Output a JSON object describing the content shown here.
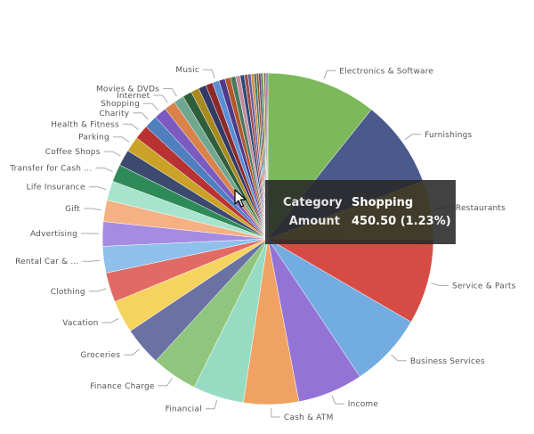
{
  "chart_data": {
    "type": "pie",
    "title": "",
    "start_angle_deg": 0,
    "slices": [
      {
        "name": "Electronics & Software",
        "value": 10.8,
        "color": "#7cb95a",
        "label": "Electronics & Software"
      },
      {
        "name": "Furnishings",
        "value": 8.6,
        "color": "#4a5a8c",
        "label": "Furnishings"
      },
      {
        "name": "Restaurants",
        "value": 5.8,
        "color": "#f2c53d",
        "label": "Restaurants"
      },
      {
        "name": "Service & Parts",
        "value": 8.3,
        "color": "#d64b43",
        "label": "Service & Parts"
      },
      {
        "name": "Business Services",
        "value": 7.3,
        "color": "#73ace0",
        "label": "Business Services"
      },
      {
        "name": "Income",
        "value": 6.4,
        "color": "#9473d6",
        "label": "Income"
      },
      {
        "name": "Cash & ATM",
        "value": 5.4,
        "color": "#f0a263",
        "label": "Cash & ATM"
      },
      {
        "name": "Financial",
        "value": 5.0,
        "color": "#97dbc3",
        "label": "Financial"
      },
      {
        "name": "Finance Charge",
        "value": 4.5,
        "color": "#8fc57c",
        "label": "Finance Charge"
      },
      {
        "name": "Groceries",
        "value": 3.8,
        "color": "#6a72a4",
        "label": "Groceries"
      },
      {
        "name": "Vacation",
        "value": 3.2,
        "color": "#f5d35e",
        "label": "Vacation"
      },
      {
        "name": "Clothing",
        "value": 2.9,
        "color": "#e26a64",
        "label": "Clothing"
      },
      {
        "name": "Rental Car & ...",
        "value": 2.6,
        "color": "#8fc0ec",
        "label": "Rental Car & ..."
      },
      {
        "name": "Advertising",
        "value": 2.4,
        "color": "#a58ce2",
        "label": "Advertising"
      },
      {
        "name": "Gift",
        "value": 2.1,
        "color": "#f5b083",
        "label": "Gift"
      },
      {
        "name": "Life Insurance",
        "value": 1.9,
        "color": "#a8e3cd",
        "label": "Life Insurance"
      },
      {
        "name": "Transfer for Cash ...",
        "value": 1.7,
        "color": "#2e8b57",
        "label": "Transfer for Cash ..."
      },
      {
        "name": "Coffee Shops",
        "value": 1.6,
        "color": "#3b4a6e",
        "label": "Coffee Shops"
      },
      {
        "name": "Parking",
        "value": 1.5,
        "color": "#c9a227",
        "label": "Parking"
      },
      {
        "name": "Health & Fitness",
        "value": 1.4,
        "color": "#b83232",
        "label": "Health & Fitness"
      },
      {
        "name": "Charity",
        "value": 1.3,
        "color": "#4f7fbf",
        "label": "Charity"
      },
      {
        "name": "Shopping",
        "value": 1.23,
        "color": "#7b5bbf",
        "label": "Shopping"
      },
      {
        "name": "Internet",
        "value": 1.1,
        "color": "#d9824a",
        "label": "Internet"
      },
      {
        "name": "Movies & DVDs",
        "value": 1.0,
        "color": "#6fa88f",
        "label": "Movies & DVDs"
      },
      {
        "name": "",
        "value": 0.9,
        "color": "#2f5e3a",
        "label": ""
      },
      {
        "name": "",
        "value": 0.8,
        "color": "#a88a1e",
        "label": ""
      },
      {
        "name": "",
        "value": 0.75,
        "color": "#333a66",
        "label": ""
      },
      {
        "name": "",
        "value": 0.7,
        "color": "#8c2a2a",
        "label": ""
      },
      {
        "name": "Music",
        "value": 0.65,
        "color": "#5a8fd6",
        "label": "Music"
      },
      {
        "name": "",
        "value": 0.6,
        "color": "#4d3a8c",
        "label": ""
      },
      {
        "name": "",
        "value": 0.55,
        "color": "#b3562a",
        "label": ""
      },
      {
        "name": "",
        "value": 0.5,
        "color": "#4a7a5e",
        "label": ""
      },
      {
        "name": "",
        "value": 0.45,
        "color": "#c48b9f",
        "label": ""
      },
      {
        "name": "",
        "value": 0.4,
        "color": "#2a4a7a",
        "label": ""
      },
      {
        "name": "",
        "value": 0.35,
        "color": "#a34a4a",
        "label": ""
      },
      {
        "name": "",
        "value": 0.3,
        "color": "#5e5ea8",
        "label": ""
      },
      {
        "name": "",
        "value": 0.28,
        "color": "#d68a3a",
        "label": ""
      },
      {
        "name": "",
        "value": 0.25,
        "color": "#3a7a7a",
        "label": ""
      },
      {
        "name": "",
        "value": 0.22,
        "color": "#8c5a2a",
        "label": ""
      },
      {
        "name": "",
        "value": 0.2,
        "color": "#6a3a6a",
        "label": ""
      },
      {
        "name": "",
        "value": 0.18,
        "color": "#2a6a4a",
        "label": ""
      },
      {
        "name": "",
        "value": 0.16,
        "color": "#c4a43a",
        "label": ""
      },
      {
        "name": "",
        "value": 0.14,
        "color": "#4a4a4a",
        "label": ""
      },
      {
        "name": "",
        "value": 0.12,
        "color": "#8a2a5a",
        "label": ""
      },
      {
        "name": "",
        "value": 0.1,
        "color": "#3a5a9a",
        "label": ""
      }
    ],
    "legend": "none",
    "data_labels": "outside with leader lines"
  },
  "tooltip": {
    "category_key": "Category",
    "category_value": "Shopping",
    "amount_key": "Amount",
    "amount_value": "450.50 (1.23%)"
  }
}
